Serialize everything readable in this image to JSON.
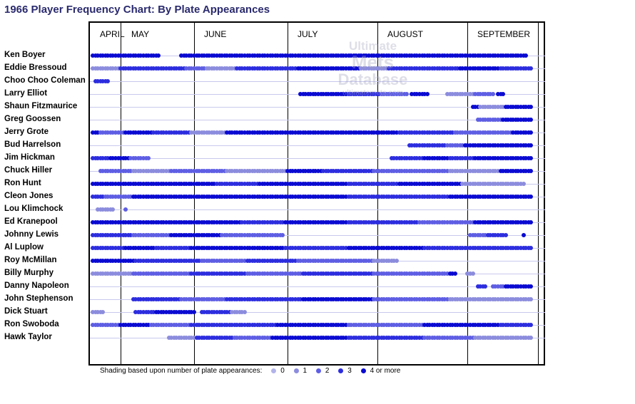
{
  "chart_data": {
    "type": "scatter",
    "title": "1966 Player Frequency Chart: By Plate Appearances",
    "months": [
      "APRIL",
      "MAY",
      "JUNE",
      "JULY",
      "AUGUST",
      "SEPTEMBER"
    ],
    "legend": {
      "label": "Shading based upon number of plate appearances:",
      "levels": [
        "0",
        "1",
        "2",
        "3",
        "4 or more"
      ],
      "colors": [
        "#b3b3ea",
        "#8c8cde",
        "#5e5ee4",
        "#2d2ddf",
        "#0a0ad2"
      ]
    },
    "players": [
      {
        "name": "Ken Boyer",
        "segments": [
          [
            0,
            26,
            4
          ],
          [
            35,
            58,
            4
          ],
          [
            59,
            89,
            4
          ],
          [
            90,
            128,
            4
          ],
          [
            129,
            152,
            4
          ],
          [
            153,
            171,
            4
          ]
        ]
      },
      {
        "name": "Eddie Bressoud",
        "segments": [
          [
            0,
            10,
            1
          ],
          [
            11,
            17,
            3
          ],
          [
            18,
            36,
            3
          ],
          [
            37,
            44,
            2
          ],
          [
            45,
            56,
            1
          ],
          [
            57,
            80,
            3
          ],
          [
            81,
            105,
            4
          ],
          [
            106,
            116,
            1
          ],
          [
            117,
            144,
            3
          ],
          [
            145,
            160,
            4
          ],
          [
            161,
            173,
            3
          ]
        ]
      },
      {
        "name": "Choo Choo Coleman",
        "segments": [
          [
            1,
            6,
            3
          ]
        ]
      },
      {
        "name": "Larry Elliot",
        "segments": [
          [
            82,
            100,
            4
          ],
          [
            101,
            113,
            3
          ],
          [
            114,
            124,
            2
          ],
          [
            126,
            132,
            4
          ],
          [
            140,
            150,
            1
          ],
          [
            151,
            158,
            2
          ],
          [
            160,
            162,
            4
          ]
        ]
      },
      {
        "name": "Shaun Fitzmaurice",
        "segments": [
          [
            150,
            152,
            4
          ],
          [
            153,
            162,
            1
          ],
          [
            163,
            173,
            4
          ]
        ]
      },
      {
        "name": "Greg Goossen",
        "segments": [
          [
            152,
            161,
            2
          ],
          [
            162,
            173,
            4
          ]
        ]
      },
      {
        "name": "Jerry Grote",
        "segments": [
          [
            0,
            2,
            4
          ],
          [
            3,
            12,
            2
          ],
          [
            13,
            23,
            4
          ],
          [
            24,
            38,
            3
          ],
          [
            39,
            52,
            1
          ],
          [
            53,
            90,
            4
          ],
          [
            91,
            120,
            4
          ],
          [
            121,
            142,
            3
          ],
          [
            143,
            165,
            2
          ],
          [
            166,
            173,
            4
          ]
        ]
      },
      {
        "name": "Bud Harrelson",
        "segments": [
          [
            125,
            139,
            3
          ],
          [
            140,
            146,
            2
          ],
          [
            147,
            155,
            4
          ],
          [
            156,
            173,
            4
          ]
        ]
      },
      {
        "name": "Jim Hickman",
        "segments": [
          [
            0,
            6,
            3
          ],
          [
            7,
            14,
            4
          ],
          [
            15,
            22,
            2
          ],
          [
            118,
            130,
            3
          ],
          [
            131,
            140,
            4
          ],
          [
            141,
            150,
            3
          ],
          [
            151,
            173,
            4
          ]
        ]
      },
      {
        "name": "Chuck Hiller",
        "segments": [
          [
            3,
            15,
            2
          ],
          [
            16,
            30,
            1
          ],
          [
            31,
            52,
            2
          ],
          [
            53,
            76,
            1
          ],
          [
            77,
            90,
            4
          ],
          [
            91,
            110,
            3
          ],
          [
            111,
            140,
            2
          ],
          [
            141,
            160,
            1
          ],
          [
            161,
            173,
            4
          ]
        ]
      },
      {
        "name": "Ron Hunt",
        "segments": [
          [
            0,
            48,
            4
          ],
          [
            49,
            65,
            3
          ],
          [
            66,
            100,
            4
          ],
          [
            101,
            120,
            3
          ],
          [
            121,
            145,
            4
          ],
          [
            146,
            170,
            1
          ]
        ]
      },
      {
        "name": "Cleon Jones",
        "segments": [
          [
            0,
            4,
            3
          ],
          [
            5,
            15,
            2
          ],
          [
            16,
            60,
            4
          ],
          [
            61,
            100,
            4
          ],
          [
            101,
            140,
            3
          ],
          [
            141,
            173,
            4
          ]
        ]
      },
      {
        "name": "Lou Klimchock",
        "segments": [
          [
            2,
            8,
            1
          ],
          [
            13,
            13,
            2
          ]
        ]
      },
      {
        "name": "Ed Kranepool",
        "segments": [
          [
            0,
            38,
            4
          ],
          [
            39,
            58,
            4
          ],
          [
            59,
            75,
            3
          ],
          [
            76,
            100,
            4
          ],
          [
            101,
            128,
            3
          ],
          [
            129,
            150,
            2
          ],
          [
            151,
            173,
            4
          ]
        ]
      },
      {
        "name": "Johnny Lewis",
        "segments": [
          [
            0,
            15,
            3
          ],
          [
            16,
            30,
            2
          ],
          [
            31,
            50,
            4
          ],
          [
            51,
            75,
            2
          ],
          [
            149,
            155,
            2
          ],
          [
            156,
            163,
            3
          ],
          [
            170,
            170,
            4
          ]
        ]
      },
      {
        "name": "Al Luplow",
        "segments": [
          [
            0,
            12,
            3
          ],
          [
            13,
            24,
            4
          ],
          [
            25,
            38,
            3
          ],
          [
            39,
            75,
            4
          ],
          [
            76,
            100,
            3
          ],
          [
            101,
            130,
            4
          ],
          [
            131,
            173,
            3
          ]
        ]
      },
      {
        "name": "Roy McMillan",
        "segments": [
          [
            0,
            16,
            4
          ],
          [
            17,
            42,
            3
          ],
          [
            43,
            60,
            2
          ],
          [
            61,
            80,
            3
          ],
          [
            81,
            110,
            2
          ],
          [
            111,
            120,
            1
          ]
        ]
      },
      {
        "name": "Billy Murphy",
        "segments": [
          [
            0,
            15,
            1
          ],
          [
            16,
            38,
            2
          ],
          [
            39,
            60,
            3
          ],
          [
            61,
            82,
            2
          ],
          [
            83,
            110,
            3
          ],
          [
            111,
            140,
            2
          ],
          [
            141,
            143,
            4
          ],
          [
            148,
            150,
            1
          ]
        ]
      },
      {
        "name": "Danny Napoleon",
        "segments": [
          [
            152,
            155,
            3
          ],
          [
            158,
            162,
            2
          ],
          [
            163,
            173,
            4
          ]
        ]
      },
      {
        "name": "John Stephenson",
        "segments": [
          [
            16,
            34,
            3
          ],
          [
            35,
            52,
            2
          ],
          [
            53,
            82,
            3
          ],
          [
            83,
            110,
            4
          ],
          [
            111,
            140,
            2
          ],
          [
            141,
            173,
            1
          ]
        ]
      },
      {
        "name": "Dick Stuart",
        "segments": [
          [
            0,
            4,
            1
          ],
          [
            17,
            24,
            3
          ],
          [
            25,
            40,
            4
          ],
          [
            43,
            54,
            3
          ],
          [
            55,
            60,
            1
          ]
        ]
      },
      {
        "name": "Ron Swoboda",
        "segments": [
          [
            0,
            10,
            2
          ],
          [
            11,
            22,
            4
          ],
          [
            23,
            38,
            2
          ],
          [
            39,
            72,
            3
          ],
          [
            73,
            100,
            4
          ],
          [
            101,
            130,
            2
          ],
          [
            131,
            160,
            4
          ],
          [
            161,
            173,
            3
          ]
        ]
      },
      {
        "name": "Hawk Taylor",
        "segments": [
          [
            30,
            40,
            1
          ],
          [
            41,
            55,
            3
          ],
          [
            56,
            70,
            2
          ],
          [
            71,
            100,
            4
          ],
          [
            101,
            130,
            3
          ],
          [
            131,
            150,
            2
          ],
          [
            151,
            173,
            1
          ]
        ]
      }
    ]
  }
}
